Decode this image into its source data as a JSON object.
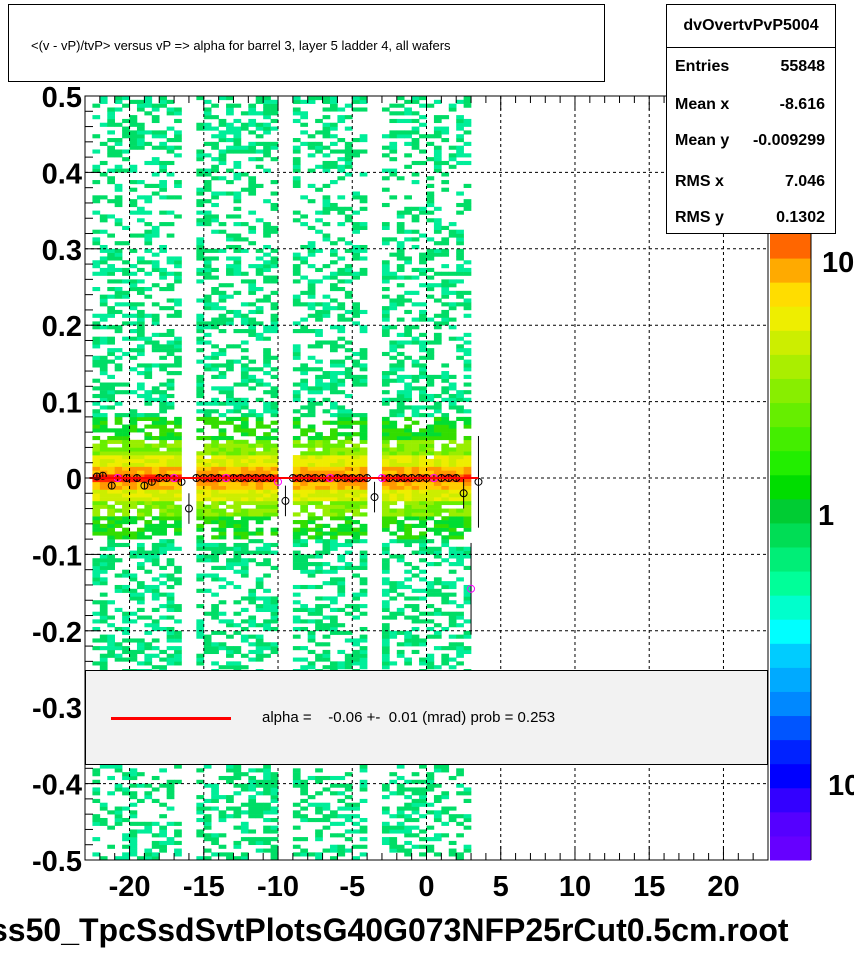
{
  "title": "<(v - vP)/tvP> versus   vP => alpha for barrel 3, layer 5 ladder 4, all wafers",
  "stats": {
    "name": "dvOvertvPvP5004",
    "rows": [
      {
        "label": "Entries",
        "value": "55848"
      },
      {
        "label": "Mean x",
        "value": "-8.616"
      },
      {
        "label": "Mean y",
        "value": "-0.009299"
      },
      {
        "label": "RMS x",
        "value": "7.046"
      },
      {
        "label": "RMS y",
        "value": "0.1302"
      }
    ]
  },
  "legend": {
    "line_color": "#ff0000",
    "text": "alpha =    -0.06 +-  0.01 (mrad) prob = 0.253"
  },
  "file_label": "ss50_TpcSsdSvtPlotsG40G073NFP25rCut0.5cm.root",
  "colorbar": {
    "tick_labels": [
      "10",
      "1",
      "10"
    ],
    "colors": [
      "#6600ff",
      "#5500ff",
      "#3300ff",
      "#0000ff",
      "#0022ff",
      "#0055ff",
      "#0088ff",
      "#00aaff",
      "#00ccff",
      "#00ffff",
      "#00ffcc",
      "#00ff99",
      "#00ee77",
      "#00dd55",
      "#00cc33",
      "#00dd00",
      "#22ee00",
      "#44ee00",
      "#66ee00",
      "#88ee00",
      "#aaee00",
      "#ccee00",
      "#eeee00",
      "#ffdd00",
      "#ffaa00",
      "#ff6600"
    ]
  },
  "chart_data": {
    "type": "heatmap",
    "title": "<(v - vP)/tvP> versus   vP => alpha for barrel 3, layer 5 ladder 4, all wafers",
    "xlim": [
      -23,
      23
    ],
    "ylim": [
      -0.5,
      0.5
    ],
    "x_ticks": [
      -20,
      -15,
      -10,
      -5,
      0,
      5,
      10,
      15,
      20
    ],
    "y_ticks": [
      -0.5,
      -0.4,
      -0.3,
      -0.2,
      -0.1,
      0,
      0.1,
      0.2,
      0.3,
      0.4,
      0.5
    ],
    "x_tick_labels": [
      "-20",
      "-15",
      "-10",
      "-5",
      "0",
      "5",
      "10",
      "15",
      "20"
    ],
    "y_tick_labels": [
      "-0.5",
      "-0.4",
      "-0.3",
      "-0.2",
      "-0.1",
      "0",
      "0.1",
      "0.2",
      "0.3",
      "0.4",
      "0.5"
    ],
    "grid": true,
    "populated_x_range": [
      -22.5,
      3
    ],
    "gaps_x": [
      -16,
      -9.5,
      -3.5
    ],
    "core_y": 0,
    "fit": {
      "slope": -6e-05,
      "intercept": 0,
      "color": "#ff0000"
    },
    "profile_points": [
      {
        "x": -22.2,
        "y": 0.002
      },
      {
        "x": -21.8,
        "y": 0.003
      },
      {
        "x": -21.2,
        "y": -0.01
      },
      {
        "x": -20.8,
        "y": 0
      },
      {
        "x": -20.2,
        "y": 0
      },
      {
        "x": -19.5,
        "y": 0
      },
      {
        "x": -19,
        "y": -0.01
      },
      {
        "x": -18.5,
        "y": -0.005
      },
      {
        "x": -18,
        "y": 0
      },
      {
        "x": -17.5,
        "y": 0
      },
      {
        "x": -17,
        "y": 0
      },
      {
        "x": -16.5,
        "y": -0.005
      },
      {
        "x": -16,
        "y": -0.04
      },
      {
        "x": -15.5,
        "y": 0
      },
      {
        "x": -15,
        "y": 0
      },
      {
        "x": -14.5,
        "y": 0
      },
      {
        "x": -14,
        "y": 0
      },
      {
        "x": -13.5,
        "y": 0
      },
      {
        "x": -13,
        "y": 0
      },
      {
        "x": -12.5,
        "y": 0
      },
      {
        "x": -12,
        "y": 0
      },
      {
        "x": -11.5,
        "y": 0
      },
      {
        "x": -11,
        "y": 0
      },
      {
        "x": -10.5,
        "y": 0
      },
      {
        "x": -10,
        "y": -0.005
      },
      {
        "x": -9.5,
        "y": -0.03
      },
      {
        "x": -9,
        "y": 0
      },
      {
        "x": -8.5,
        "y": 0
      },
      {
        "x": -8,
        "y": 0
      },
      {
        "x": -7.5,
        "y": 0
      },
      {
        "x": -7,
        "y": 0
      },
      {
        "x": -6.5,
        "y": 0
      },
      {
        "x": -6,
        "y": 0
      },
      {
        "x": -5.5,
        "y": 0
      },
      {
        "x": -5,
        "y": 0
      },
      {
        "x": -4.5,
        "y": 0
      },
      {
        "x": -4,
        "y": 0
      },
      {
        "x": -3.5,
        "y": -0.025
      },
      {
        "x": -3,
        "y": 0
      },
      {
        "x": -2.5,
        "y": 0
      },
      {
        "x": -2,
        "y": 0
      },
      {
        "x": -1.5,
        "y": 0
      },
      {
        "x": -1,
        "y": 0
      },
      {
        "x": -0.5,
        "y": 0
      },
      {
        "x": 0,
        "y": 0
      },
      {
        "x": 0.5,
        "y": 0
      },
      {
        "x": 1,
        "y": 0
      },
      {
        "x": 1.5,
        "y": 0
      },
      {
        "x": 2,
        "y": 0
      },
      {
        "x": 2.5,
        "y": -0.02
      },
      {
        "x": 3,
        "y": -0.145
      },
      {
        "x": 3.5,
        "y": -0.005
      }
    ]
  }
}
